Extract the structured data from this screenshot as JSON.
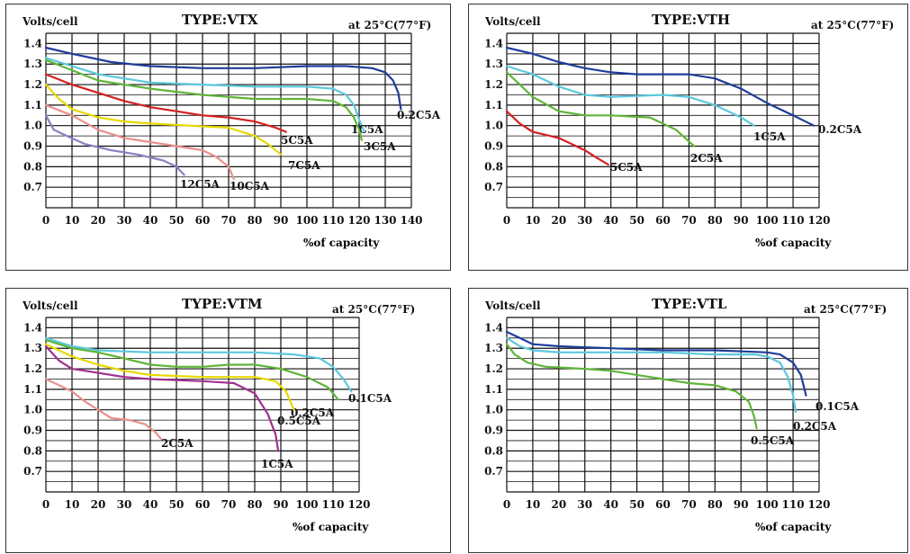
{
  "panels": [
    {
      "y_axis_label": "Volts/cell",
      "title": "TYPE:VTX",
      "temp": "at 25°C(77°F)",
      "x_axis_label": "%of capacity"
    },
    {
      "y_axis_label": "Volts/cell",
      "title": "TYPE:VTH",
      "temp": "at 25°C(77°F)",
      "x_axis_label": "%of capacity"
    },
    {
      "y_axis_label": "Volts/cell",
      "title": "TYPE:VTM",
      "temp": "at 25°C(77°F)",
      "x_axis_label": "%of capacity"
    },
    {
      "y_axis_label": "Volts/cell",
      "title": "TYPE:VTL",
      "temp": "at 25°C(77°F)",
      "x_axis_label": "%of capacity"
    }
  ],
  "chart_data": [
    {
      "type": "line",
      "title": "TYPE:VTX",
      "xlabel": "%of capacity",
      "ylabel": "Volts/cell",
      "xlim": [
        0,
        140
      ],
      "ylim": [
        0.6,
        1.45
      ],
      "xticks": [
        0,
        10,
        20,
        30,
        40,
        50,
        60,
        70,
        80,
        90,
        100,
        110,
        120,
        130,
        140
      ],
      "yticks": [
        0.7,
        0.8,
        0.9,
        1.0,
        1.1,
        1.2,
        1.3,
        1.4
      ],
      "grid": true,
      "series": [
        {
          "name": "0.2C5A",
          "color": "#1f3c9a",
          "points": [
            [
              0,
              1.38
            ],
            [
              10,
              1.35
            ],
            [
              25,
              1.31
            ],
            [
              40,
              1.29
            ],
            [
              60,
              1.28
            ],
            [
              80,
              1.28
            ],
            [
              100,
              1.29
            ],
            [
              115,
              1.29
            ],
            [
              125,
              1.28
            ],
            [
              130,
              1.26
            ],
            [
              133,
              1.22
            ],
            [
              135,
              1.16
            ],
            [
              136,
              1.08
            ]
          ]
        },
        {
          "name": "1C5A",
          "color": "#5bc8dc",
          "points": [
            [
              0,
              1.33
            ],
            [
              10,
              1.29
            ],
            [
              20,
              1.25
            ],
            [
              40,
              1.21
            ],
            [
              60,
              1.2
            ],
            [
              80,
              1.19
            ],
            [
              100,
              1.19
            ],
            [
              110,
              1.18
            ],
            [
              115,
              1.15
            ],
            [
              118,
              1.1
            ],
            [
              120,
              1.03
            ],
            [
              122,
              0.97
            ]
          ]
        },
        {
          "name": "3C5A",
          "color": "#5fb538",
          "points": [
            [
              0,
              1.32
            ],
            [
              10,
              1.27
            ],
            [
              20,
              1.22
            ],
            [
              40,
              1.18
            ],
            [
              60,
              1.15
            ],
            [
              80,
              1.13
            ],
            [
              100,
              1.13
            ],
            [
              110,
              1.12
            ],
            [
              115,
              1.09
            ],
            [
              118,
              1.04
            ],
            [
              120,
              0.98
            ],
            [
              121,
              0.93
            ]
          ]
        },
        {
          "name": "5C5A",
          "color": "#d42020",
          "points": [
            [
              0,
              1.25
            ],
            [
              10,
              1.2
            ],
            [
              20,
              1.16
            ],
            [
              30,
              1.12
            ],
            [
              40,
              1.09
            ],
            [
              50,
              1.07
            ],
            [
              60,
              1.05
            ],
            [
              70,
              1.04
            ],
            [
              80,
              1.02
            ],
            [
              88,
              0.99
            ],
            [
              92,
              0.97
            ]
          ]
        },
        {
          "name": "7C5A",
          "color": "#e8d800",
          "points": [
            [
              0,
              1.2
            ],
            [
              5,
              1.13
            ],
            [
              10,
              1.08
            ],
            [
              20,
              1.04
            ],
            [
              30,
              1.02
            ],
            [
              40,
              1.01
            ],
            [
              55,
              1.0
            ],
            [
              70,
              0.99
            ],
            [
              80,
              0.95
            ],
            [
              85,
              0.91
            ],
            [
              90,
              0.86
            ]
          ]
        },
        {
          "name": "10C5A",
          "color": "#e8908a",
          "points": [
            [
              0,
              1.1
            ],
            [
              10,
              1.05
            ],
            [
              20,
              0.98
            ],
            [
              30,
              0.94
            ],
            [
              40,
              0.92
            ],
            [
              50,
              0.9
            ],
            [
              60,
              0.88
            ],
            [
              65,
              0.85
            ],
            [
              70,
              0.8
            ],
            [
              72,
              0.74
            ]
          ]
        },
        {
          "name": "12C5A",
          "color": "#8a80c4",
          "points": [
            [
              0,
              1.05
            ],
            [
              3,
              0.98
            ],
            [
              8,
              0.95
            ],
            [
              15,
              0.91
            ],
            [
              25,
              0.88
            ],
            [
              35,
              0.86
            ],
            [
              45,
              0.83
            ],
            [
              50,
              0.8
            ],
            [
              53,
              0.76
            ]
          ]
        }
      ]
    },
    {
      "type": "line",
      "title": "TYPE:VTH",
      "xlabel": "%of capacity",
      "ylabel": "Volts/cell",
      "xlim": [
        0,
        120
      ],
      "ylim": [
        0.6,
        1.45
      ],
      "xticks": [
        0,
        10,
        20,
        30,
        40,
        50,
        60,
        70,
        80,
        90,
        100,
        110,
        120
      ],
      "yticks": [
        0.7,
        0.8,
        0.9,
        1.0,
        1.1,
        1.2,
        1.3,
        1.4
      ],
      "grid": true,
      "series": [
        {
          "name": "0.2C5A",
          "color": "#1f3c9a",
          "points": [
            [
              0,
              1.38
            ],
            [
              10,
              1.35
            ],
            [
              20,
              1.31
            ],
            [
              30,
              1.28
            ],
            [
              40,
              1.26
            ],
            [
              50,
              1.25
            ],
            [
              60,
              1.25
            ],
            [
              70,
              1.25
            ],
            [
              80,
              1.23
            ],
            [
              90,
              1.18
            ],
            [
              100,
              1.11
            ],
            [
              110,
              1.05
            ],
            [
              118,
              1.0
            ]
          ]
        },
        {
          "name": "1C5A",
          "color": "#5bc8dc",
          "points": [
            [
              0,
              1.29
            ],
            [
              10,
              1.25
            ],
            [
              20,
              1.19
            ],
            [
              30,
              1.15
            ],
            [
              40,
              1.14
            ],
            [
              60,
              1.15
            ],
            [
              70,
              1.14
            ],
            [
              80,
              1.1
            ],
            [
              90,
              1.04
            ],
            [
              95,
              1.0
            ]
          ]
        },
        {
          "name": "2C5A",
          "color": "#5fb538",
          "points": [
            [
              0,
              1.26
            ],
            [
              5,
              1.2
            ],
            [
              10,
              1.14
            ],
            [
              20,
              1.07
            ],
            [
              30,
              1.05
            ],
            [
              40,
              1.05
            ],
            [
              55,
              1.04
            ],
            [
              65,
              0.98
            ],
            [
              72,
              0.9
            ]
          ]
        },
        {
          "name": "5C5A",
          "color": "#d42020",
          "points": [
            [
              0,
              1.07
            ],
            [
              5,
              1.01
            ],
            [
              10,
              0.97
            ],
            [
              20,
              0.94
            ],
            [
              30,
              0.88
            ],
            [
              35,
              0.84
            ],
            [
              39,
              0.81
            ]
          ]
        }
      ]
    },
    {
      "type": "line",
      "title": "TYPE:VTM",
      "xlabel": "%of capacity",
      "ylabel": "Volts/cell",
      "xlim": [
        0,
        120
      ],
      "ylim": [
        0.6,
        1.45
      ],
      "xticks": [
        0,
        10,
        20,
        30,
        40,
        50,
        60,
        70,
        80,
        90,
        100,
        110,
        120
      ],
      "yticks": [
        0.7,
        0.8,
        0.9,
        1.0,
        1.1,
        1.2,
        1.3,
        1.4
      ],
      "grid": true,
      "series": [
        {
          "name": "0.1C5A",
          "color": "#5bc8dc",
          "points": [
            [
              0,
              1.35
            ],
            [
              10,
              1.31
            ],
            [
              20,
              1.29
            ],
            [
              40,
              1.28
            ],
            [
              60,
              1.28
            ],
            [
              80,
              1.28
            ],
            [
              95,
              1.27
            ],
            [
              105,
              1.25
            ],
            [
              110,
              1.21
            ],
            [
              114,
              1.15
            ],
            [
              117,
              1.09
            ]
          ]
        },
        {
          "name": "0.2C5A",
          "color": "#5fb538",
          "points": [
            [
              0,
              1.34
            ],
            [
              10,
              1.3
            ],
            [
              20,
              1.28
            ],
            [
              30,
              1.25
            ],
            [
              40,
              1.22
            ],
            [
              50,
              1.21
            ],
            [
              60,
              1.21
            ],
            [
              70,
              1.22
            ],
            [
              80,
              1.22
            ],
            [
              90,
              1.2
            ],
            [
              100,
              1.16
            ],
            [
              108,
              1.11
            ],
            [
              112,
              1.05
            ]
          ]
        },
        {
          "name": "0.5C5A",
          "color": "#e8d800",
          "points": [
            [
              0,
              1.32
            ],
            [
              10,
              1.26
            ],
            [
              20,
              1.22
            ],
            [
              30,
              1.19
            ],
            [
              40,
              1.17
            ],
            [
              60,
              1.16
            ],
            [
              80,
              1.16
            ],
            [
              88,
              1.14
            ],
            [
              92,
              1.09
            ],
            [
              95,
              1.0
            ]
          ]
        },
        {
          "name": "1C5A",
          "color": "#a03090",
          "points": [
            [
              0,
              1.31
            ],
            [
              5,
              1.24
            ],
            [
              10,
              1.2
            ],
            [
              20,
              1.18
            ],
            [
              30,
              1.16
            ],
            [
              40,
              1.15
            ],
            [
              60,
              1.14
            ],
            [
              72,
              1.13
            ],
            [
              80,
              1.08
            ],
            [
              85,
              0.98
            ],
            [
              88,
              0.88
            ],
            [
              89,
              0.8
            ]
          ]
        },
        {
          "name": "2C5A",
          "color": "#e8908a",
          "points": [
            [
              0,
              1.15
            ],
            [
              5,
              1.12
            ],
            [
              10,
              1.09
            ],
            [
              15,
              1.04
            ],
            [
              20,
              1.0
            ],
            [
              25,
              0.96
            ],
            [
              32,
              0.95
            ],
            [
              38,
              0.93
            ],
            [
              42,
              0.89
            ],
            [
              44,
              0.86
            ]
          ]
        }
      ]
    },
    {
      "type": "line",
      "title": "TYPE:VTL",
      "xlabel": "%of capacity",
      "ylabel": "Volts/cell",
      "xlim": [
        0,
        120
      ],
      "ylim": [
        0.6,
        1.45
      ],
      "xticks": [
        0,
        10,
        20,
        30,
        40,
        50,
        60,
        70,
        80,
        90,
        100,
        110,
        120
      ],
      "yticks": [
        0.7,
        0.8,
        0.9,
        1.0,
        1.1,
        1.2,
        1.3,
        1.4
      ],
      "grid": true,
      "series": [
        {
          "name": "0.1C5A",
          "color": "#1f3c9a",
          "points": [
            [
              0,
              1.38
            ],
            [
              5,
              1.35
            ],
            [
              10,
              1.32
            ],
            [
              20,
              1.31
            ],
            [
              40,
              1.3
            ],
            [
              60,
              1.29
            ],
            [
              80,
              1.29
            ],
            [
              100,
              1.28
            ],
            [
              105,
              1.27
            ],
            [
              110,
              1.23
            ],
            [
              113,
              1.17
            ],
            [
              115,
              1.07
            ]
          ]
        },
        {
          "name": "0.2C5A",
          "color": "#5bc8dc",
          "points": [
            [
              0,
              1.35
            ],
            [
              5,
              1.31
            ],
            [
              10,
              1.29
            ],
            [
              20,
              1.28
            ],
            [
              40,
              1.28
            ],
            [
              60,
              1.28
            ],
            [
              80,
              1.27
            ],
            [
              95,
              1.27
            ],
            [
              100,
              1.26
            ],
            [
              105,
              1.23
            ],
            [
              108,
              1.16
            ],
            [
              110,
              1.07
            ],
            [
              111,
              0.99
            ]
          ]
        },
        {
          "name": "0.5C5A",
          "color": "#5fb538",
          "points": [
            [
              0,
              1.32
            ],
            [
              3,
              1.27
            ],
            [
              8,
              1.23
            ],
            [
              15,
              1.21
            ],
            [
              30,
              1.2
            ],
            [
              40,
              1.19
            ],
            [
              50,
              1.17
            ],
            [
              60,
              1.15
            ],
            [
              70,
              1.13
            ],
            [
              80,
              1.12
            ],
            [
              88,
              1.09
            ],
            [
              93,
              1.04
            ],
            [
              95,
              0.97
            ],
            [
              96,
              0.91
            ]
          ]
        }
      ]
    }
  ]
}
